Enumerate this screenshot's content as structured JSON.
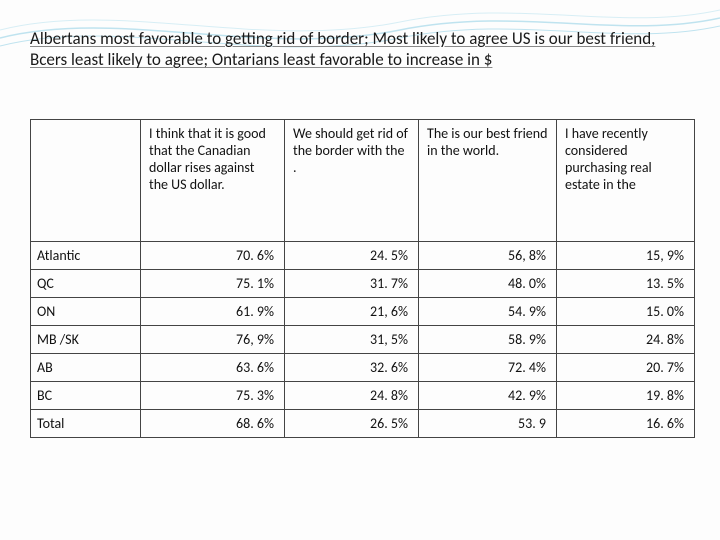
{
  "title": "Albertans most favorable to getting rid of border; Most likely to agree US is our best friend, Bcers least likely to agree; Ontarians least favorable to increase in $",
  "table": {
    "columns": [
      "",
      "I think that it is good that the Canadian dollar rises against the US dollar.",
      "We should get rid of the border with the .",
      "The is our best friend in the world.",
      "I have recently considered purchasing real estate in the"
    ],
    "rows": [
      {
        "label": "Atlantic",
        "values": [
          "70. 6%",
          "24. 5%",
          "56, 8%",
          "15, 9%"
        ]
      },
      {
        "label": "QC",
        "values": [
          "75. 1%",
          "31. 7%",
          "48. 0%",
          "13. 5%"
        ]
      },
      {
        "label": "ON",
        "values": [
          "61. 9%",
          "21, 6%",
          "54. 9%",
          "15. 0%"
        ]
      },
      {
        "label": "MB /SK",
        "values": [
          "76, 9%",
          "31, 5%",
          "58. 9%",
          "24. 8%"
        ]
      },
      {
        "label": "AB",
        "values": [
          "63. 6%",
          "32. 6%",
          "72. 4%",
          "20. 7%"
        ]
      },
      {
        "label": "BC",
        "values": [
          "75. 3%",
          "24. 8%",
          "42. 9%",
          "19. 8%"
        ]
      },
      {
        "label": "Total",
        "values": [
          "68. 6%",
          "26. 5%",
          "53. 9",
          "16. 6%"
        ]
      }
    ]
  },
  "style": {
    "background_color": "#fdfdfd",
    "wave_stroke": "#bfe3ef",
    "title_fontsize": 17,
    "table_fontsize": 14,
    "border_color": "#444444",
    "text_color": "#111111"
  }
}
